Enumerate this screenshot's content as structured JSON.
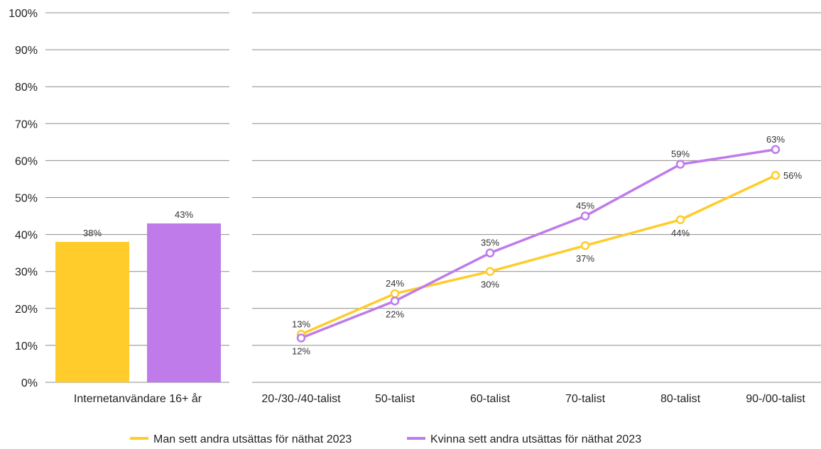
{
  "colors": {
    "man": "#FFCC2B",
    "kvinna": "#BF7BEA",
    "grid": "#8c8c8c"
  },
  "chart_data": [
    {
      "type": "bar",
      "categories": [
        "Internetanvändare 16+ år"
      ],
      "series": [
        {
          "name": "Man sett andra utsättas för näthat 2023",
          "values": [
            38
          ],
          "labels": [
            "38%"
          ]
        },
        {
          "name": "Kvinna sett andra utsättas för näthat 2023",
          "values": [
            43
          ],
          "labels": [
            "43%"
          ]
        }
      ],
      "ylim": [
        0,
        100
      ],
      "yticks": [
        "0%",
        "10%",
        "20%",
        "30%",
        "40%",
        "50%",
        "60%",
        "70%",
        "80%",
        "90%",
        "100%"
      ],
      "grid": true
    },
    {
      "type": "line",
      "categories": [
        "20-/30-/40-talist",
        "50-talist",
        "60-talist",
        "70-talist",
        "80-talist",
        "90-/00-talist"
      ],
      "series": [
        {
          "name": "Man sett andra utsättas för näthat 2023",
          "values": [
            13,
            24,
            30,
            37,
            44,
            56
          ],
          "labels": [
            "13%",
            "24%",
            "30%",
            "37%",
            "44%",
            "56%"
          ]
        },
        {
          "name": "Kvinna sett andra utsättas för näthat 2023",
          "values": [
            12,
            22,
            35,
            45,
            59,
            63
          ],
          "labels": [
            "12%",
            "22%",
            "35%",
            "45%",
            "59%",
            "63%"
          ]
        }
      ],
      "ylim": [
        0,
        100
      ],
      "grid": true
    }
  ],
  "legend": {
    "position": "bottom",
    "items": [
      {
        "label": "Man sett andra utsättas för näthat 2023",
        "color_key": "man"
      },
      {
        "label": "Kvinna sett andra utsättas för näthat 2023",
        "color_key": "kvinna"
      }
    ]
  }
}
